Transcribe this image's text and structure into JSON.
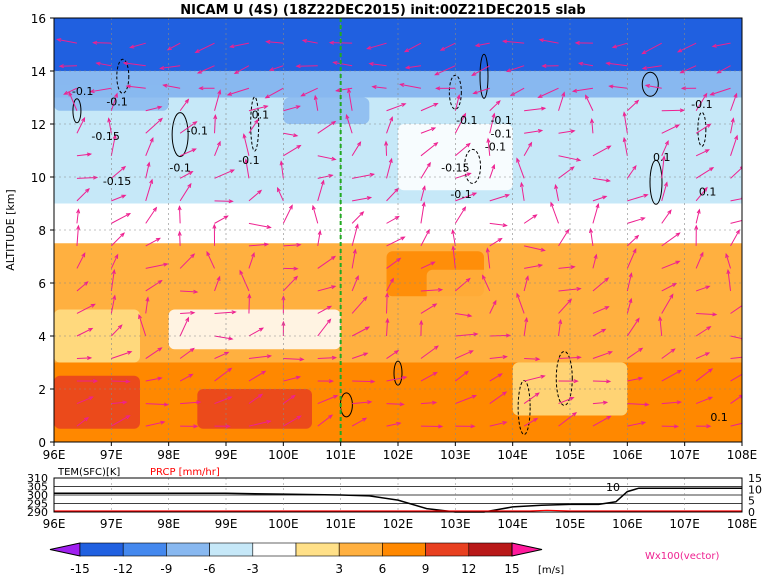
{
  "title": "NICAM U (4S) (18Z22DEC2015) init:00Z21DEC2015 slab",
  "chart_data": [
    {
      "type": "heatmap",
      "panel": "main",
      "ylabel": "ALTITUDE [km]",
      "x_ticks": [
        "96E",
        "97E",
        "98E",
        "99E",
        "100E",
        "101E",
        "102E",
        "103E",
        "104E",
        "105E",
        "106E",
        "107E",
        "108E"
      ],
      "y_ticks": [
        "0",
        "2",
        "4",
        "6",
        "8",
        "10",
        "12",
        "14",
        "16"
      ],
      "xlim": [
        96,
        108
      ],
      "ylim": [
        0,
        16
      ],
      "grid": true,
      "marker_line_lon": 101,
      "marker_line_color": "#22aa22",
      "contour_labels": [
        "-0.1",
        "-0.1",
        "-0.15",
        "-0.1",
        "-0.1",
        "-0.15",
        "-0.1",
        "0.1",
        "-0.1",
        "-0.15",
        "-0.1",
        "-0.1",
        "-0.1",
        "-0.1",
        "0.1",
        "0.1",
        "-0.1",
        "0.1"
      ],
      "bands": [
        {
          "alt_range": [
            14,
            16
          ],
          "u_ms": -15
        },
        {
          "alt_range": [
            13,
            14
          ],
          "u_ms": -9
        },
        {
          "alt_range": [
            9,
            13
          ],
          "u_ms": -4.5
        },
        {
          "alt_range": [
            7.5,
            9
          ],
          "u_ms": 0
        },
        {
          "alt_range": [
            3,
            7.5
          ],
          "u_ms": 6
        },
        {
          "alt_range": [
            0,
            3
          ],
          "u_ms": 9
        }
      ]
    },
    {
      "type": "line",
      "panel": "surface",
      "series": [
        {
          "name": "TEM(SFC)[K]",
          "color": "#000000",
          "x": [
            96,
            97,
            98,
            99,
            100,
            101,
            101.5,
            102,
            102.5,
            103,
            103.5,
            104,
            104.5,
            105,
            105.5,
            105.8,
            106,
            106.2,
            107,
            108
          ],
          "y": [
            301,
            301,
            301,
            301,
            300.5,
            300,
            299.5,
            297,
            292,
            290,
            290,
            293,
            294,
            294.5,
            294.5,
            296,
            302,
            304,
            304,
            304
          ]
        },
        {
          "name": "PRCP [mm/hr]",
          "color": "#ff0000",
          "x": [
            96,
            102,
            104.3,
            104.6,
            105,
            108
          ],
          "y": [
            0,
            0,
            0,
            0.3,
            0,
            0
          ]
        }
      ],
      "left_ticks": [
        "310",
        "305",
        "300",
        "295",
        "290"
      ],
      "right_ticks": [
        "15",
        "10",
        "5",
        "0"
      ],
      "x_ticks": [
        "96E",
        "97E",
        "98E",
        "99E",
        "100E",
        "101E",
        "102E",
        "103E",
        "104E",
        "105E",
        "106E",
        "107E",
        "108E"
      ],
      "ylim_left": [
        290,
        310
      ],
      "ylim_right": [
        0,
        15
      ],
      "annotation": "10"
    }
  ],
  "colorbar": {
    "labels": [
      "-15",
      "-12",
      "-9",
      "-6",
      "-3",
      "3",
      "6",
      "9",
      "12",
      "15"
    ],
    "colors": [
      "#a020f0",
      "#2060e0",
      "#4488ee",
      "#88b8f0",
      "#c6e8f8",
      "#ffffff",
      "#ffe088",
      "#ffb040",
      "#ff8800",
      "#e84020",
      "#b81818",
      "#ff1a9c"
    ],
    "unit": "[m/s]"
  },
  "vector_note": "Wx100(vector)",
  "colors": {
    "vector": "#ee2090",
    "precip_label": "#ff0000"
  }
}
